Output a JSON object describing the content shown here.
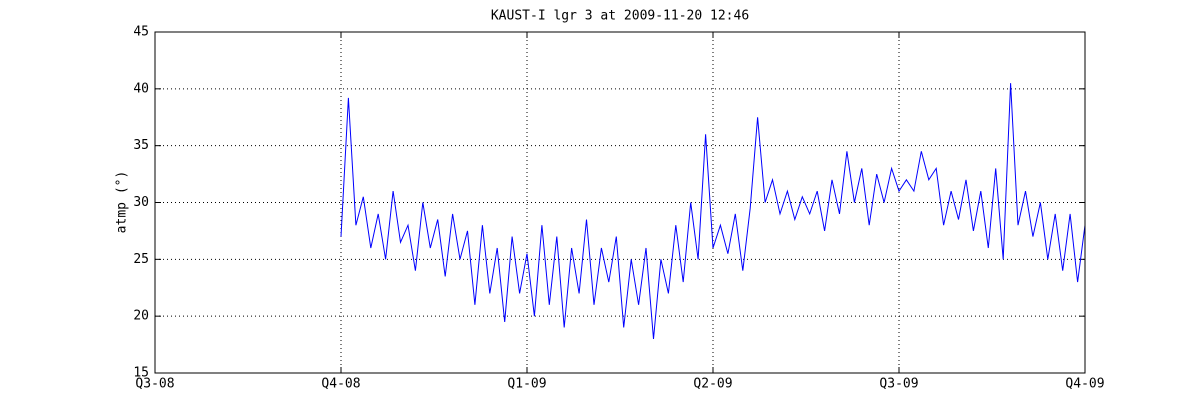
{
  "chart_data": {
    "type": "line",
    "title": "KAUST-I lgr 3 at 2009-11-20 12:46",
    "y_label": "atmp (°)",
    "x": [
      1.0,
      1.04,
      1.08,
      1.12,
      1.16,
      1.2,
      1.24,
      1.28,
      1.32,
      1.36,
      1.4,
      1.44,
      1.48,
      1.52,
      1.56,
      1.6,
      1.64,
      1.68,
      1.72,
      1.76,
      1.8,
      1.84,
      1.88,
      1.92,
      1.96,
      2.0,
      2.04,
      2.08,
      2.12,
      2.16,
      2.2,
      2.24,
      2.28,
      2.32,
      2.36,
      2.4,
      2.44,
      2.48,
      2.52,
      2.56,
      2.6,
      2.64,
      2.68,
      2.72,
      2.76,
      2.8,
      2.84,
      2.88,
      2.92,
      2.96,
      3.0,
      3.04,
      3.08,
      3.12,
      3.16,
      3.2,
      3.24,
      3.28,
      3.32,
      3.36,
      3.4,
      3.44,
      3.48,
      3.52,
      3.56,
      3.6,
      3.64,
      3.68,
      3.72,
      3.76,
      3.8,
      3.84,
      3.88,
      3.92,
      3.96,
      4.0,
      4.04,
      4.08,
      4.12,
      4.16,
      4.2,
      4.24,
      4.28,
      4.32,
      4.36,
      4.4,
      4.44,
      4.48,
      4.52,
      4.56,
      4.6,
      4.64,
      4.68,
      4.72,
      4.76,
      4.8,
      4.84,
      4.88,
      4.92,
      4.96,
      5.0
    ],
    "series": [
      {
        "color": "#0000ff",
        "values": [
          27,
          39.2,
          28,
          30.5,
          26,
          29,
          25,
          31,
          26.5,
          28,
          24,
          30,
          26,
          28.5,
          23.5,
          29,
          25,
          27.5,
          21,
          28,
          22,
          26,
          19.5,
          27,
          22,
          25.5,
          20,
          28,
          21,
          27,
          19,
          26,
          22,
          28.5,
          21,
          26,
          23,
          27,
          19,
          25,
          21,
          26,
          18,
          25,
          22,
          28,
          23,
          30,
          25,
          36,
          26,
          28,
          25.5,
          29,
          24,
          29.5,
          37.5,
          30,
          32,
          29,
          31,
          28.5,
          30.5,
          29,
          31,
          27.5,
          32,
          29,
          34.5,
          30,
          33,
          28,
          32.5,
          30,
          33,
          31,
          32,
          31,
          34.5,
          32,
          33,
          28,
          31,
          28.5,
          32,
          27.5,
          31,
          26,
          33,
          25,
          40.5,
          28,
          31,
          27,
          30,
          25,
          29,
          24,
          29,
          23,
          28
        ]
      }
    ],
    "xlim": [
      0,
      5
    ],
    "xticks": [
      {
        "value": 0,
        "label": "Q3-08"
      },
      {
        "value": 1,
        "label": "Q4-08"
      },
      {
        "value": 2,
        "label": "Q1-09"
      },
      {
        "value": 3,
        "label": "Q2-09"
      },
      {
        "value": 4,
        "label": "Q3-09"
      },
      {
        "value": 5,
        "label": "Q4-09"
      }
    ],
    "ylim": [
      15,
      45
    ],
    "yticks": [
      15,
      20,
      25,
      30,
      35,
      40,
      45
    ],
    "grid": true
  }
}
